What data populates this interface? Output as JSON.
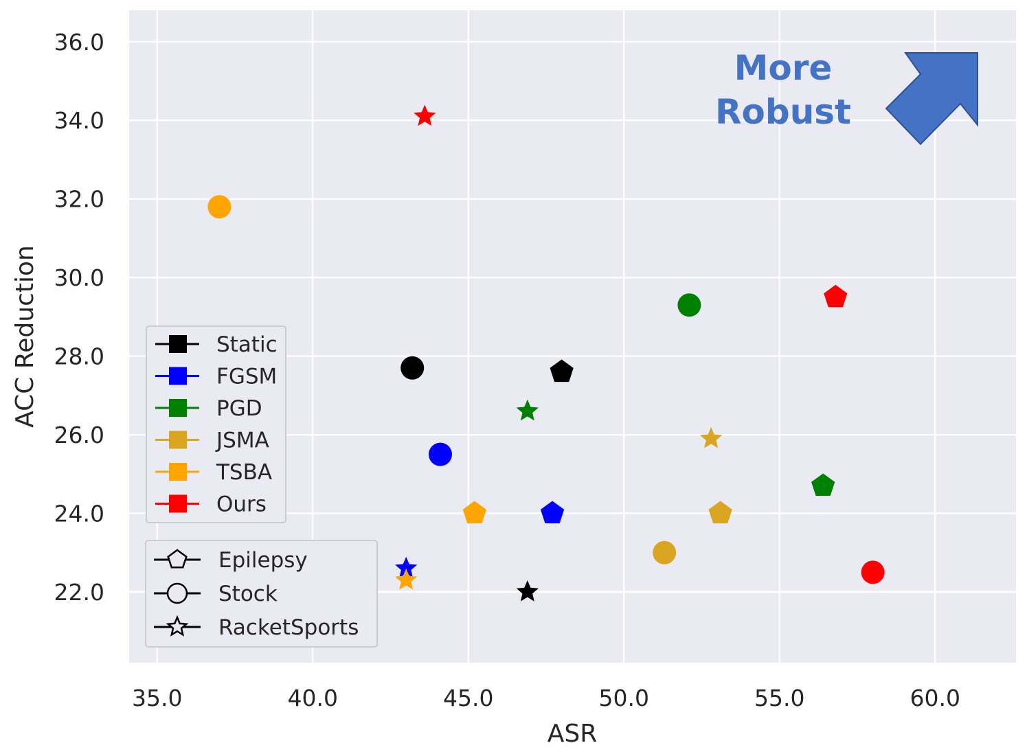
{
  "chart_data": {
    "type": "scatter",
    "xlabel": "ASR",
    "ylabel": "ACC Reduction",
    "xlim": [
      34.1,
      62.6
    ],
    "ylim": [
      20.2,
      36.8
    ],
    "xticks": [
      35.0,
      40.0,
      45.0,
      50.0,
      55.0,
      60.0
    ],
    "yticks": [
      22.0,
      24.0,
      26.0,
      28.0,
      30.0,
      32.0,
      34.0,
      36.0
    ],
    "xtick_labels": [
      "35.0",
      "40.0",
      "45.0",
      "50.0",
      "55.0",
      "60.0"
    ],
    "ytick_labels": [
      "22.0",
      "24.0",
      "26.0",
      "28.0",
      "30.0",
      "32.0",
      "34.0",
      "36.0"
    ],
    "grid": true,
    "annotation": {
      "line1": "More",
      "line2": "Robust",
      "color": "#4472c4"
    },
    "method_legend": {
      "placement": "center-left",
      "items": [
        {
          "name": "Static",
          "color": "#000000"
        },
        {
          "name": "FGSM",
          "color": "#0000ff"
        },
        {
          "name": "PGD",
          "color": "#008000"
        },
        {
          "name": "JSMA",
          "color": "#daa520"
        },
        {
          "name": "TSBA",
          "color": "#ffa500"
        },
        {
          "name": "Ours",
          "color": "#ff0000"
        }
      ]
    },
    "dataset_legend": {
      "placement": "lower-left",
      "items": [
        {
          "name": "Epilepsy",
          "marker": "pentagon"
        },
        {
          "name": "Stock",
          "marker": "circle"
        },
        {
          "name": "RacketSports",
          "marker": "star"
        }
      ]
    },
    "points": [
      {
        "method": "Static",
        "dataset": "Epilepsy",
        "x": 48.0,
        "y": 27.6
      },
      {
        "method": "Static",
        "dataset": "Stock",
        "x": 43.2,
        "y": 27.7
      },
      {
        "method": "Static",
        "dataset": "RacketSports",
        "x": 46.9,
        "y": 22.0
      },
      {
        "method": "FGSM",
        "dataset": "Epilepsy",
        "x": 47.7,
        "y": 24.0
      },
      {
        "method": "FGSM",
        "dataset": "Stock",
        "x": 44.1,
        "y": 25.5
      },
      {
        "method": "FGSM",
        "dataset": "RacketSports",
        "x": 43.0,
        "y": 22.6
      },
      {
        "method": "PGD",
        "dataset": "Epilepsy",
        "x": 56.4,
        "y": 24.7
      },
      {
        "method": "PGD",
        "dataset": "Stock",
        "x": 52.1,
        "y": 29.3
      },
      {
        "method": "PGD",
        "dataset": "RacketSports",
        "x": 46.9,
        "y": 26.6
      },
      {
        "method": "JSMA",
        "dataset": "Epilepsy",
        "x": 53.1,
        "y": 24.0
      },
      {
        "method": "JSMA",
        "dataset": "Stock",
        "x": 51.3,
        "y": 23.0
      },
      {
        "method": "JSMA",
        "dataset": "RacketSports",
        "x": 52.8,
        "y": 25.9
      },
      {
        "method": "TSBA",
        "dataset": "Epilepsy",
        "x": 45.2,
        "y": 24.0
      },
      {
        "method": "TSBA",
        "dataset": "Stock",
        "x": 37.0,
        "y": 31.8
      },
      {
        "method": "TSBA",
        "dataset": "RacketSports",
        "x": 43.0,
        "y": 22.3
      },
      {
        "method": "Ours",
        "dataset": "Epilepsy",
        "x": 56.8,
        "y": 29.5
      },
      {
        "method": "Ours",
        "dataset": "Stock",
        "x": 58.0,
        "y": 22.5
      },
      {
        "method": "Ours",
        "dataset": "RacketSports",
        "x": 43.6,
        "y": 34.1
      }
    ]
  }
}
